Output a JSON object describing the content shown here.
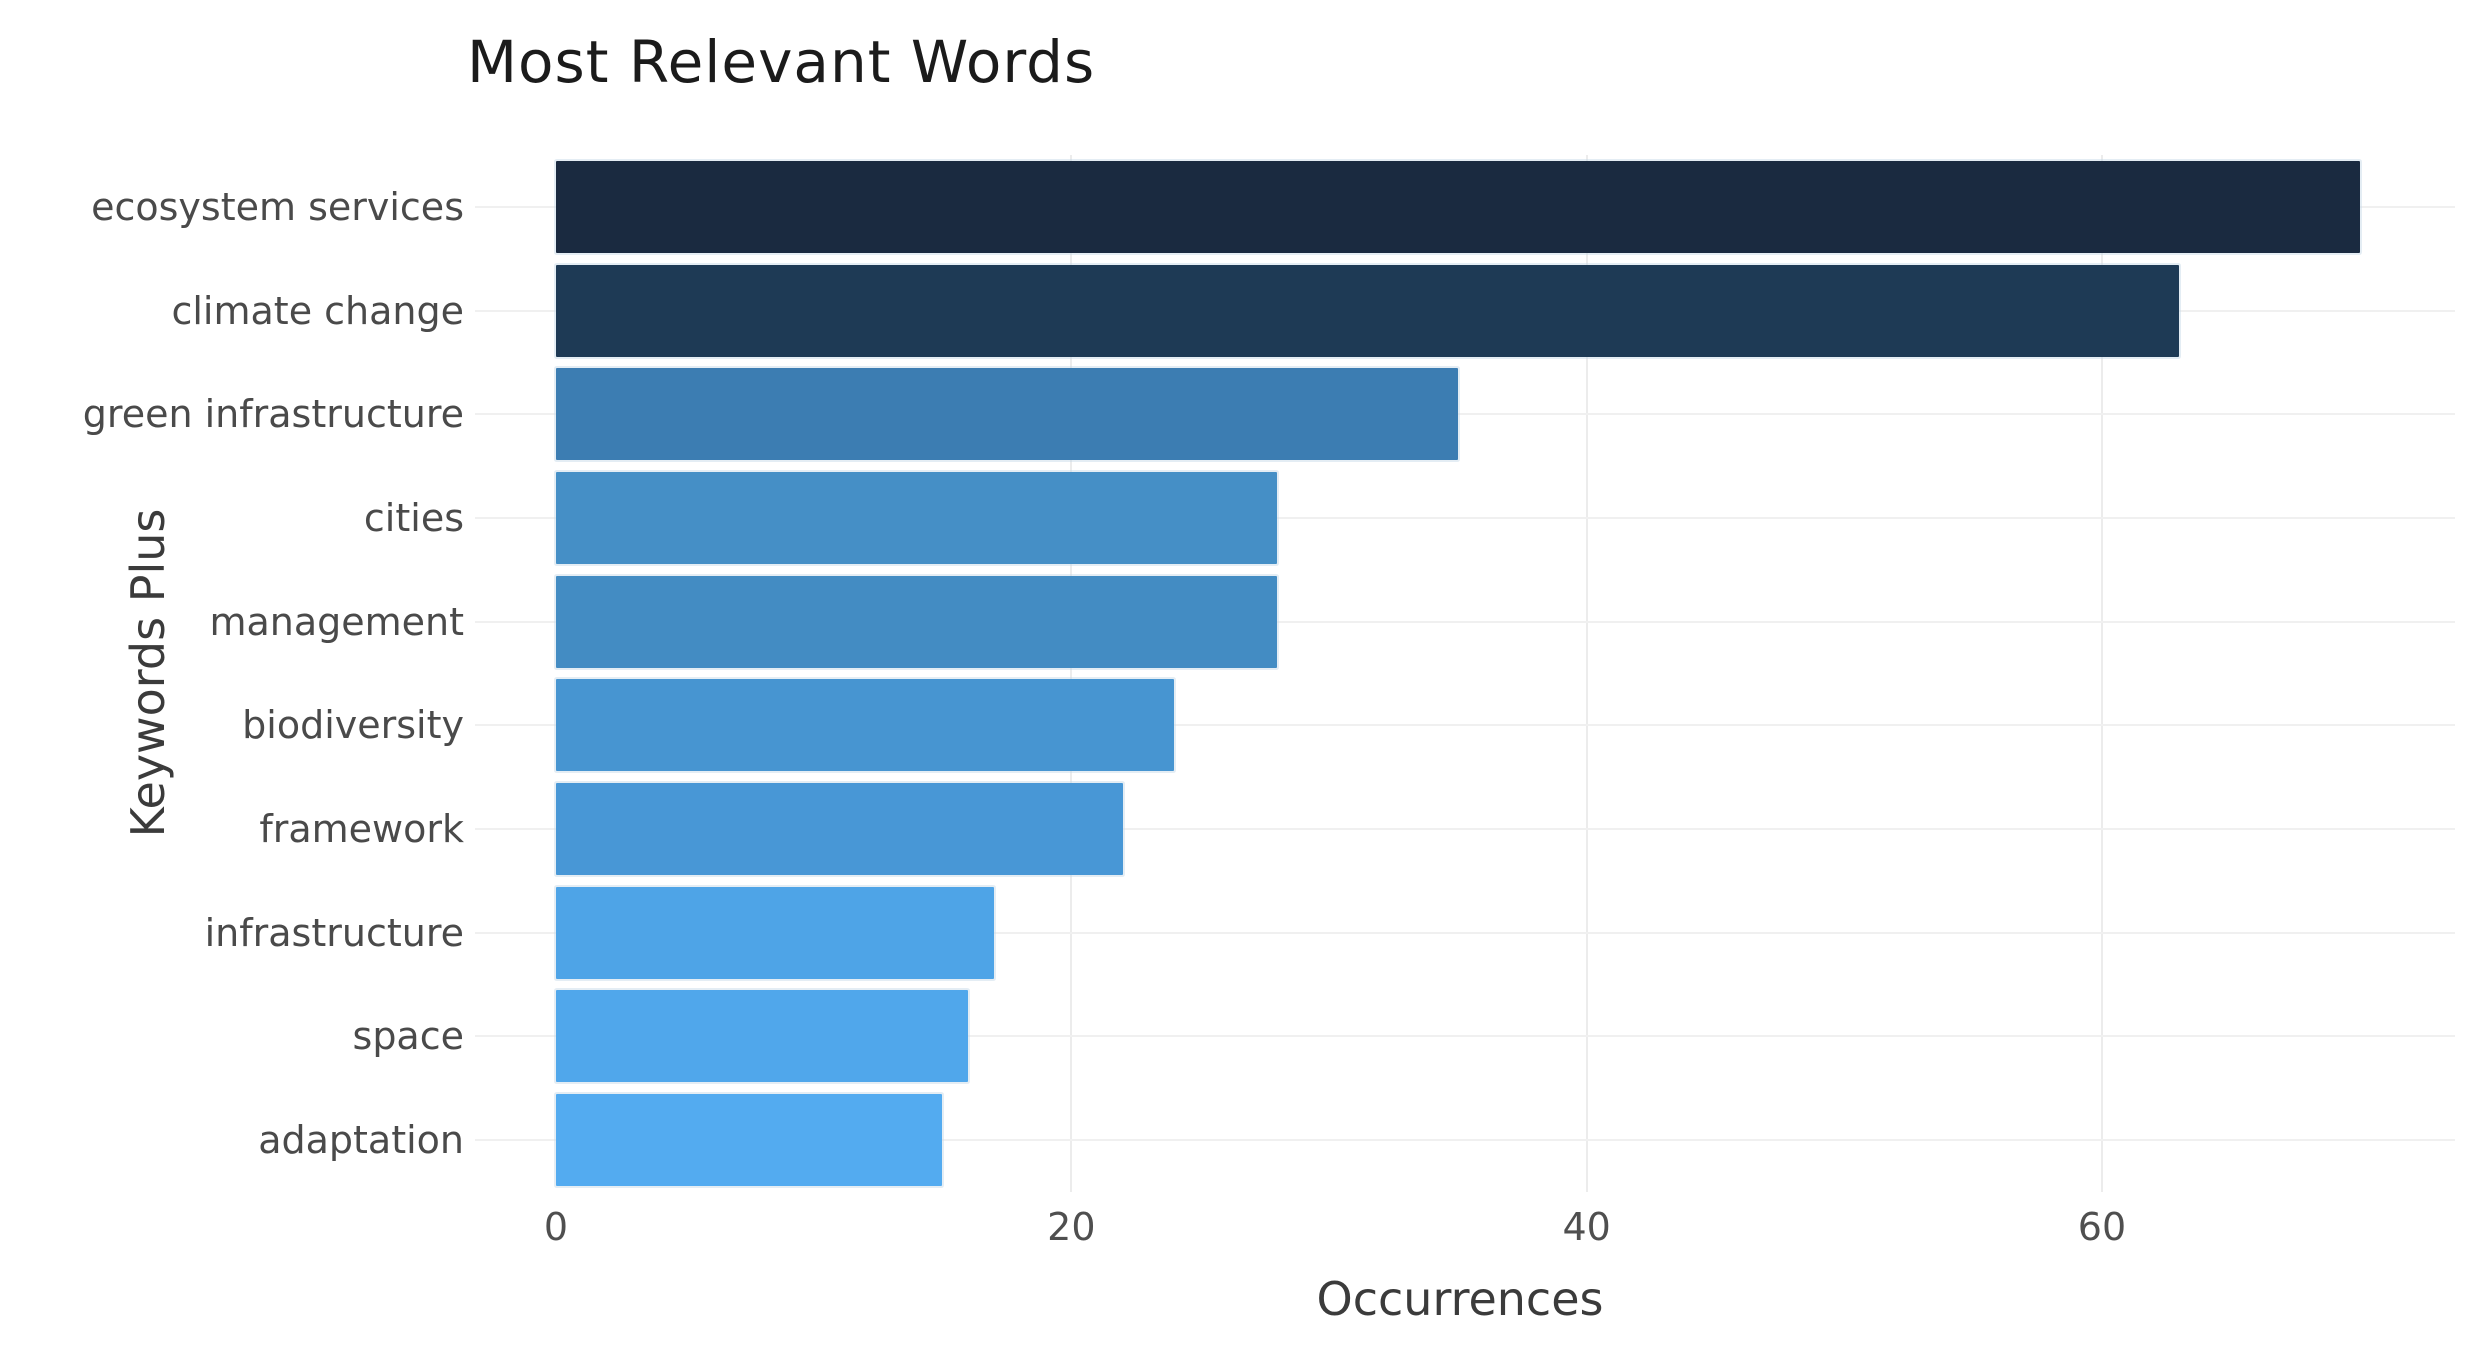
{
  "title": "Most Relevant Words",
  "colors": {
    "background": "#ffffff",
    "grid_vertical": "#ececec",
    "grid_horizontal": "#f0f0f0",
    "title_text": "#1b1b1b",
    "label_text": "#4a4a4a",
    "tick_text": "#4f4f4f",
    "axis_title_text": "#3b3b3b"
  },
  "chart_data": {
    "type": "bar",
    "orientation": "horizontal",
    "title": "Most Relevant Words",
    "xlabel": "Occurrences",
    "ylabel": "Keywords Plus",
    "categories": [
      "ecosystem services",
      "climate change",
      "green infrastructure",
      "cities",
      "management",
      "biodiversity",
      "framework",
      "infrastructure",
      "space",
      "adaptation"
    ],
    "values": [
      70,
      63,
      35,
      28,
      28,
      24,
      22,
      17,
      16,
      15
    ],
    "bar_colors": [
      "#1a2a40",
      "#1e3a55",
      "#3c7db2",
      "#458fc6",
      "#438cc3",
      "#4795d1",
      "#4897d6",
      "#4ea4e7",
      "#50a7eb",
      "#53abf0"
    ],
    "x_ticks": [
      0,
      20,
      40,
      60
    ],
    "xlim": [
      0,
      73.7
    ],
    "grid": true,
    "legend": false,
    "sorted": "descending"
  }
}
